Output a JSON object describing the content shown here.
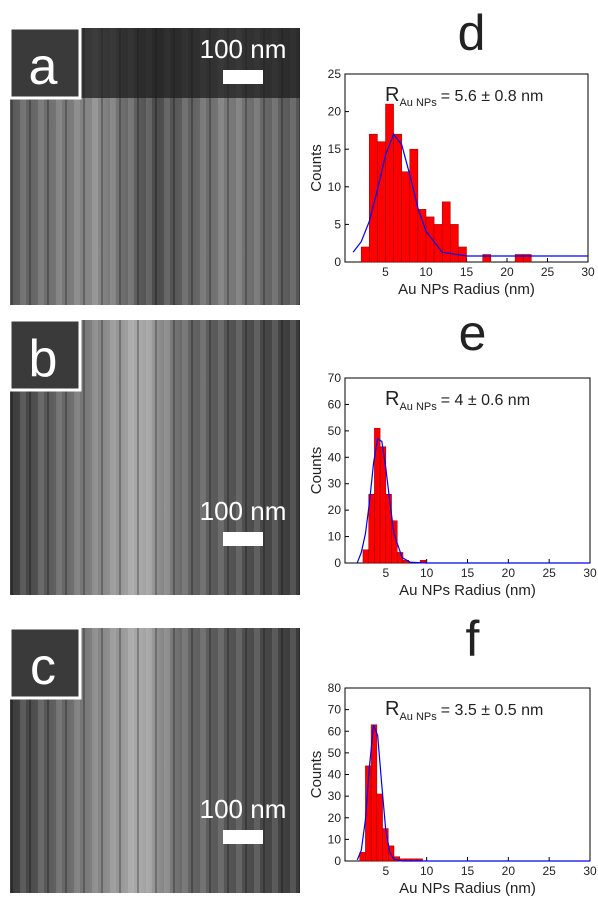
{
  "images": [
    {
      "label": "a",
      "scale_bar": "100 nm"
    },
    {
      "label": "b",
      "scale_bar": "100 nm"
    },
    {
      "label": "c",
      "scale_bar": "100 nm"
    }
  ],
  "chart_data": [
    {
      "type": "histogram",
      "title": "d",
      "x_label": "Au NPs Radius (nm)",
      "y_label": "Counts",
      "annotation": {
        "symbol": "R",
        "subscript": "Au NPs",
        "text": "= 5.6 ± 0.8 nm"
      },
      "color": "#ff0000",
      "bins": [
        2,
        3,
        4,
        5,
        6,
        7,
        8,
        9,
        10,
        11,
        12,
        13,
        14,
        15,
        16,
        17,
        18,
        19,
        20,
        21,
        22,
        23
      ],
      "values": [
        2,
        17,
        16,
        21,
        17,
        12,
        15,
        7,
        6,
        5,
        8,
        5,
        2,
        0,
        0,
        1,
        0,
        0,
        0,
        1,
        1
      ],
      "fit": {
        "color": "#0000ff",
        "x": [
          1,
          2,
          3,
          4,
          5,
          6,
          7,
          8,
          9,
          10,
          12,
          15,
          20,
          30
        ],
        "values": [
          1.3,
          2.7,
          5.4,
          9.6,
          14.2,
          17,
          15.6,
          11.6,
          7.2,
          4.1,
          1.3,
          0.8,
          0.8,
          0.8
        ]
      },
      "xlim": [
        0,
        30
      ],
      "xticks": [
        5,
        10,
        15,
        20,
        25,
        30
      ],
      "ylim": [
        0,
        25
      ],
      "yticks": [
        0,
        5,
        10,
        15,
        20,
        25
      ]
    },
    {
      "type": "histogram",
      "title": "e",
      "x_label": "Au NPs Radius (nm)",
      "y_label": "Counts",
      "annotation": {
        "symbol": "R",
        "subscript": "Au NPs",
        "text": "= 4 ± 0.6 nm"
      },
      "color": "#ff0000",
      "bins": [
        2.2,
        2.9,
        3.6,
        4.3,
        5.0,
        5.7,
        6.4,
        7.1,
        7.8,
        8.5,
        9.2,
        9.9
      ],
      "values": [
        5,
        26,
        51,
        44,
        26,
        16,
        4,
        1,
        0,
        0,
        1
      ],
      "fit": {
        "color": "#0000ff",
        "x": [
          1.5,
          2,
          2.5,
          3,
          3.5,
          4,
          4.5,
          5,
          5.5,
          6,
          7,
          8,
          10,
          30
        ],
        "values": [
          0.1,
          4,
          11,
          23,
          38,
          47,
          46,
          36,
          23,
          11,
          2,
          0.3,
          0,
          0
        ]
      },
      "xlim": [
        0,
        30
      ],
      "xticks": [
        5,
        10,
        15,
        20,
        25,
        30
      ],
      "ylim": [
        0,
        70
      ],
      "yticks": [
        0,
        10,
        20,
        30,
        40,
        50,
        60,
        70
      ]
    },
    {
      "type": "histogram",
      "title": "f",
      "x_label": "Au NPs Radius (nm)",
      "y_label": "Counts",
      "annotation": {
        "symbol": "R",
        "subscript": "Au NPs",
        "text": "= 3.5 ± 0.5 nm"
      },
      "color": "#ff0000",
      "bins": [
        1.8,
        2.5,
        3.2,
        3.9,
        4.6,
        5.3,
        6.0,
        6.7,
        7.4,
        8.1,
        8.8,
        9.5
      ],
      "values": [
        4,
        44,
        63,
        31,
        15,
        7,
        2,
        1,
        1,
        1,
        1
      ],
      "fit": {
        "color": "#0000ff",
        "x": [
          1.5,
          2,
          2.5,
          3,
          3.5,
          4,
          4.5,
          5,
          5.5,
          6,
          7,
          10,
          30
        ],
        "values": [
          0.5,
          5,
          19,
          44,
          63,
          58,
          35,
          14,
          4,
          0.8,
          0,
          0,
          0
        ]
      },
      "xlim": [
        0,
        30
      ],
      "xticks": [
        5,
        10,
        15,
        20,
        25,
        30
      ],
      "ylim": [
        0,
        80
      ],
      "yticks": [
        0,
        10,
        20,
        30,
        40,
        50,
        60,
        70,
        80
      ]
    }
  ]
}
